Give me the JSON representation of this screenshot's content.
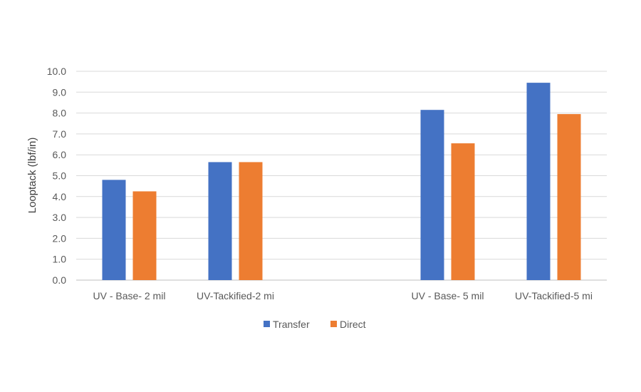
{
  "chart_data": {
    "type": "bar",
    "title": "",
    "xlabel": "",
    "ylabel": "Looptack (lbf/in)",
    "ylim": [
      0,
      10
    ],
    "yticks": [
      "0.0",
      "1.0",
      "2.0",
      "3.0",
      "4.0",
      "5.0",
      "6.0",
      "7.0",
      "8.0",
      "9.0",
      "10.0"
    ],
    "grid": true,
    "legend_position": "bottom",
    "categories": [
      "UV - Base- 2 mil",
      "UV-Tackified-2 mi",
      "",
      "UV - Base- 5 mil",
      "UV-Tackified-5 mi"
    ],
    "series": [
      {
        "name": "Transfer",
        "color": "#4472C4",
        "values": [
          4.8,
          5.65,
          null,
          8.15,
          9.45
        ]
      },
      {
        "name": "Direct",
        "color": "#ED7D31",
        "values": [
          4.25,
          5.65,
          null,
          6.55,
          7.95
        ]
      }
    ]
  }
}
